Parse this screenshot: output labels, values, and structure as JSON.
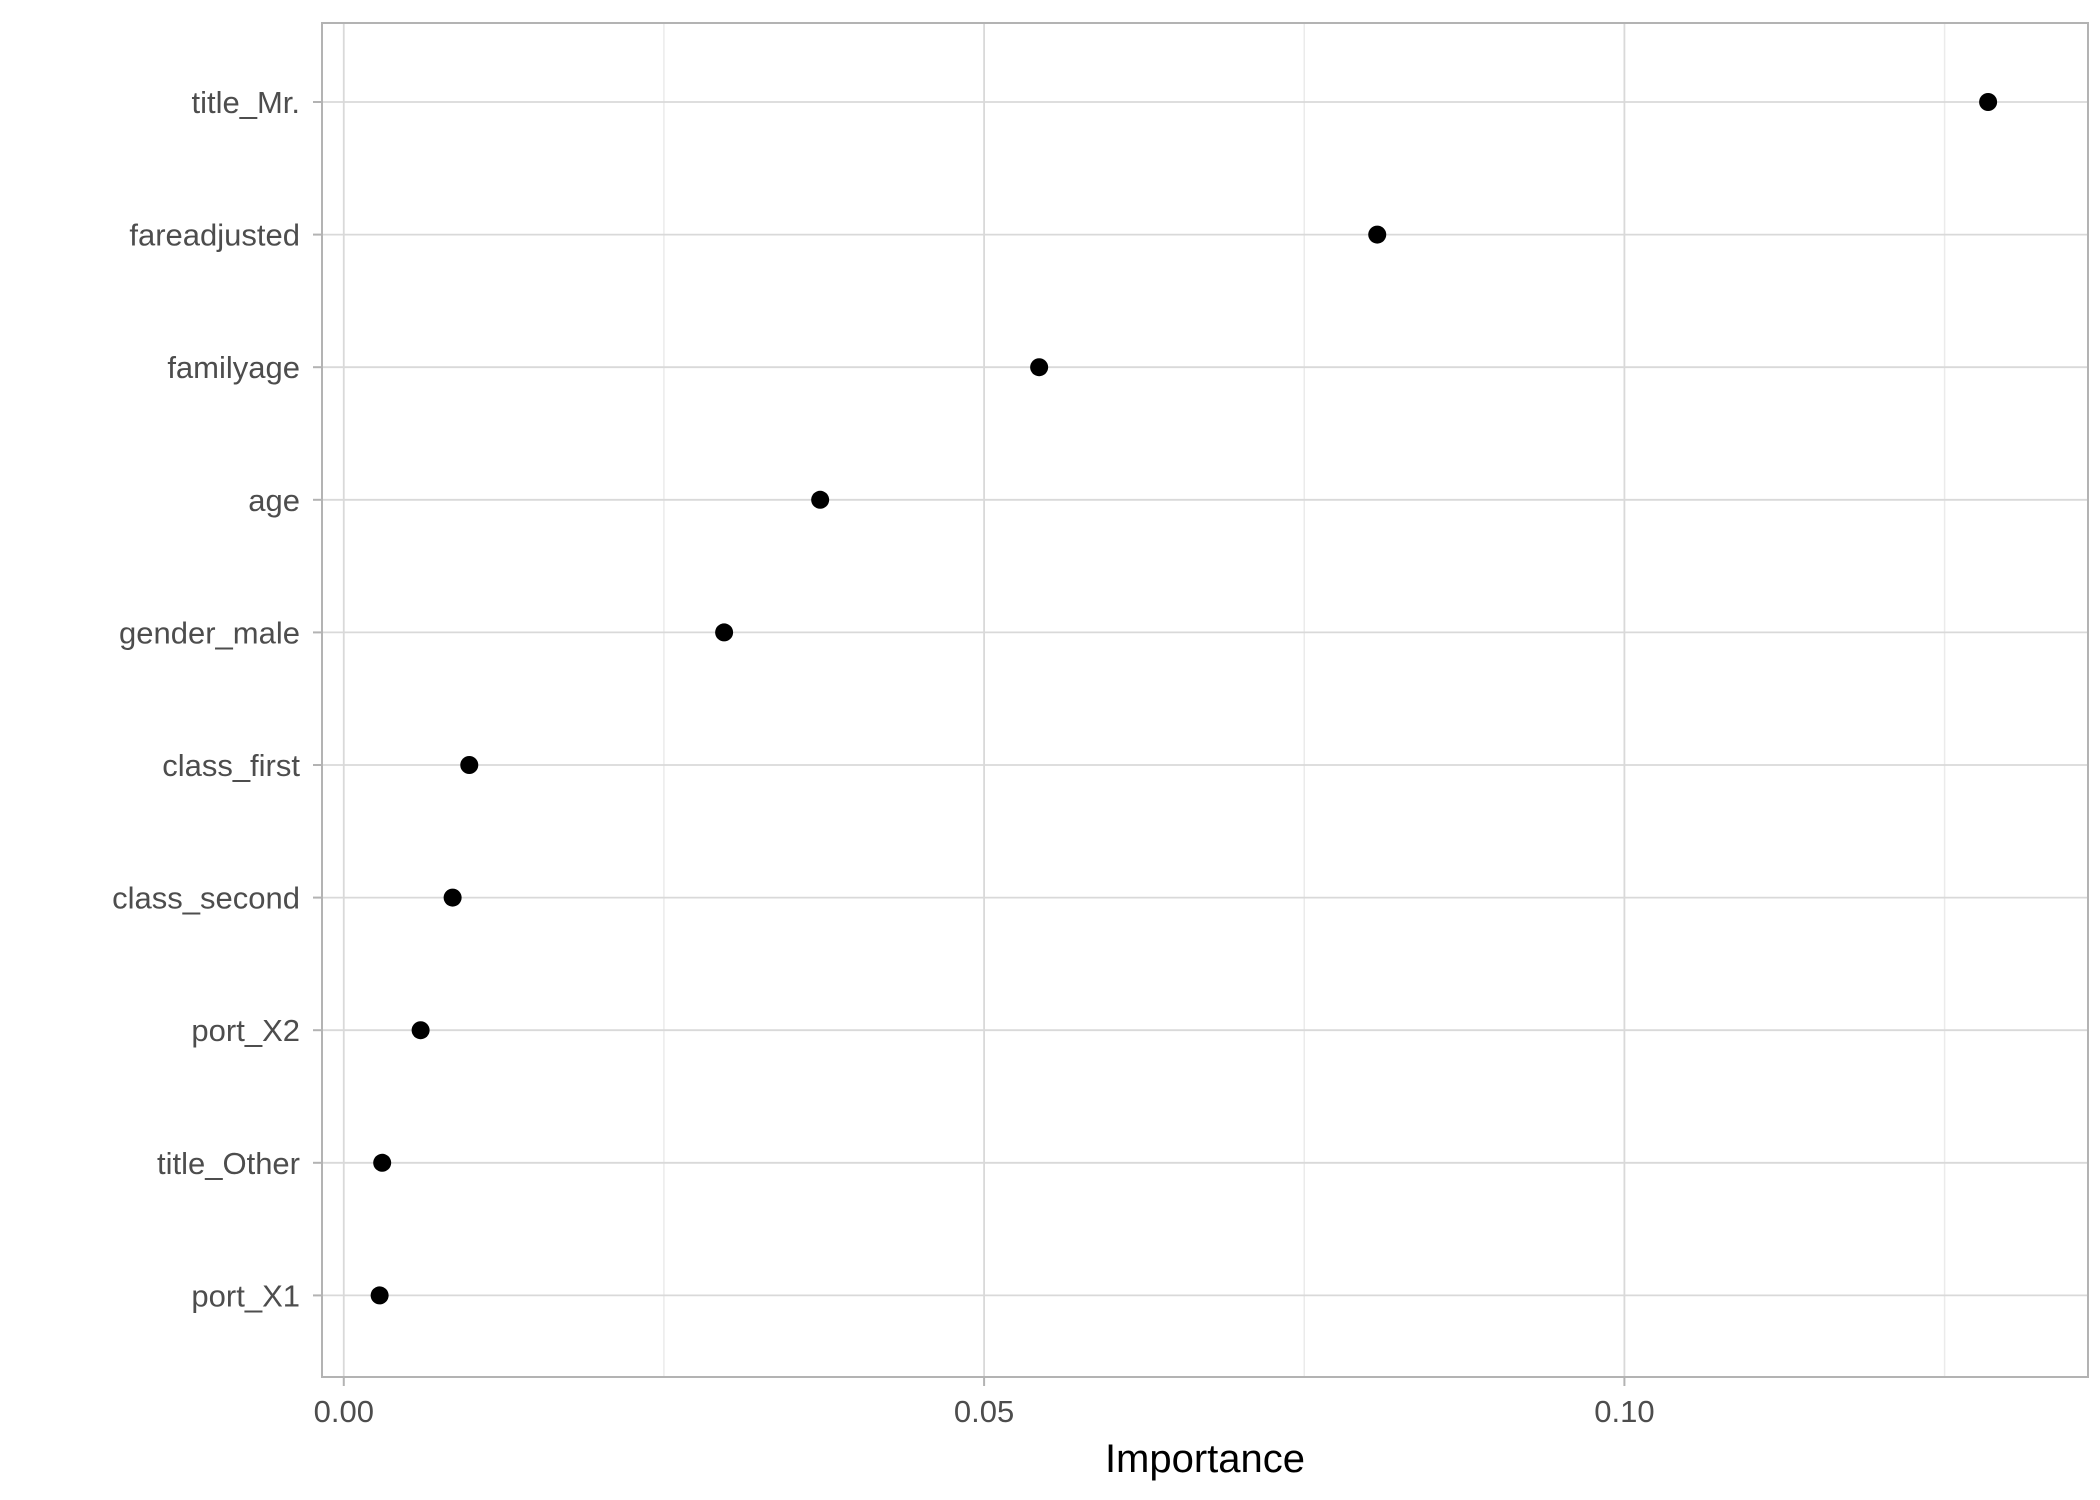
{
  "chart_data": {
    "type": "scatter",
    "title": "",
    "xlabel": "Importance",
    "ylabel": "",
    "xlim": [
      -0.0017,
      0.1362
    ],
    "x_ticks": [
      0.0,
      0.05,
      0.1
    ],
    "x_tick_labels": [
      "0.00",
      "0.05",
      "0.10"
    ],
    "x_minor_ticks": [
      0.025,
      0.075,
      0.125
    ],
    "categories": [
      "title_Mr.",
      "fareadjusted",
      "familyage",
      "age",
      "gender_male",
      "class_first",
      "class_second",
      "port_X2",
      "title_Other",
      "port_X1"
    ],
    "values": [
      0.1284,
      0.0807,
      0.0543,
      0.0372,
      0.0297,
      0.0098,
      0.0085,
      0.006,
      0.003,
      0.0028
    ],
    "grid": true,
    "legend": "none",
    "colors": {
      "point": "#000000",
      "grid_major": "#d9d9d9",
      "grid_minor": "#ebebeb",
      "panel_border": "#b3b3b3",
      "tick_text": "#4d4d4d"
    }
  }
}
